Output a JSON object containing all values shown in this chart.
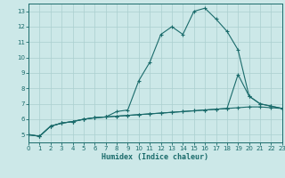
{
  "bg_color": "#cce8e8",
  "grid_color": "#aacfcf",
  "line_color": "#1a6b6b",
  "xlabel": "Humidex (Indice chaleur)",
  "xlim": [
    0,
    23
  ],
  "ylim": [
    4.5,
    13.5
  ],
  "yticks": [
    5,
    6,
    7,
    8,
    9,
    10,
    11,
    12,
    13
  ],
  "xticks": [
    0,
    1,
    2,
    3,
    4,
    5,
    6,
    7,
    8,
    9,
    10,
    11,
    12,
    13,
    14,
    15,
    16,
    17,
    18,
    19,
    20,
    21,
    22,
    23
  ],
  "line1_x": [
    0,
    1,
    2,
    3,
    4,
    5,
    6,
    7,
    8,
    9,
    10,
    11,
    12,
    13,
    14,
    15,
    16,
    17,
    18,
    19,
    20,
    21,
    22,
    23
  ],
  "line1_y": [
    5.0,
    4.9,
    5.55,
    5.75,
    5.85,
    6.0,
    6.1,
    6.15,
    6.2,
    6.25,
    6.3,
    6.35,
    6.4,
    6.45,
    6.5,
    6.55,
    6.6,
    6.65,
    6.7,
    6.75,
    6.8,
    6.8,
    6.75,
    6.7
  ],
  "line2_x": [
    0,
    1,
    2,
    3,
    4,
    5,
    6,
    7,
    8,
    9,
    10,
    11,
    12,
    13,
    14,
    15,
    16,
    17,
    18,
    19,
    20,
    21,
    22,
    23
  ],
  "line2_y": [
    5.0,
    4.9,
    5.55,
    5.75,
    5.85,
    6.0,
    6.1,
    6.15,
    6.2,
    6.25,
    6.3,
    6.35,
    6.4,
    6.45,
    6.5,
    6.55,
    6.6,
    6.65,
    6.7,
    8.9,
    7.5,
    7.0,
    6.85,
    6.7
  ],
  "line3_x": [
    0,
    1,
    2,
    3,
    4,
    5,
    6,
    7,
    8,
    9,
    10,
    11,
    12,
    13,
    14,
    15,
    16,
    17,
    18,
    19,
    20,
    21,
    22,
    23
  ],
  "line3_y": [
    5.0,
    4.9,
    5.55,
    5.75,
    5.85,
    6.0,
    6.1,
    6.15,
    6.5,
    6.6,
    8.5,
    9.7,
    11.5,
    12.0,
    11.5,
    13.0,
    13.2,
    12.5,
    11.7,
    10.5,
    7.5,
    7.0,
    6.85,
    6.7
  ]
}
